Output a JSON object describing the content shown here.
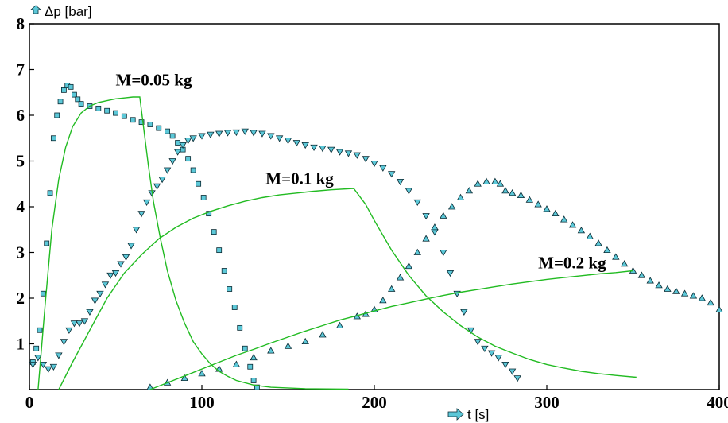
{
  "chart_data": {
    "type": "scatter",
    "title": "",
    "xlabel": "t [s]",
    "ylabel": "Δp [bar]",
    "xlim": [
      0,
      400
    ],
    "ylim": [
      0,
      8
    ],
    "x_ticks": [
      "0",
      "100",
      "200",
      "300",
      "400"
    ],
    "y_ticks": [
      "1",
      "2",
      "3",
      "4",
      "5",
      "6",
      "7",
      "8"
    ],
    "grid": false,
    "legend": "none",
    "annotations": [
      {
        "text": "M=0.05 kg",
        "x": 50,
        "y": 6.65
      },
      {
        "text": "M=0.1 kg",
        "x": 137,
        "y": 4.5
      },
      {
        "text": "M=0.2 kg",
        "x": 295,
        "y": 2.65
      }
    ],
    "colors": {
      "model_line": "#22bb22",
      "marker_fill": "#5cc8d8",
      "marker_edge": "#0a2a33"
    },
    "series": [
      {
        "marker": "square",
        "points": [
          [
            2,
            0.6
          ],
          [
            4,
            0.9
          ],
          [
            6,
            1.3
          ],
          [
            8,
            2.1
          ],
          [
            10,
            3.2
          ],
          [
            12,
            4.3
          ],
          [
            14,
            5.5
          ],
          [
            16,
            6.0
          ],
          [
            18,
            6.3
          ],
          [
            20,
            6.55
          ],
          [
            22,
            6.65
          ],
          [
            24,
            6.62
          ],
          [
            26,
            6.45
          ],
          [
            28,
            6.35
          ],
          [
            30,
            6.25
          ],
          [
            35,
            6.2
          ],
          [
            40,
            6.15
          ],
          [
            45,
            6.1
          ],
          [
            50,
            6.05
          ],
          [
            55,
            5.98
          ],
          [
            60,
            5.9
          ],
          [
            65,
            5.85
          ],
          [
            70,
            5.8
          ],
          [
            75,
            5.72
          ],
          [
            80,
            5.65
          ],
          [
            83,
            5.55
          ],
          [
            86,
            5.4
          ],
          [
            89,
            5.25
          ],
          [
            92,
            5.05
          ],
          [
            95,
            4.8
          ],
          [
            98,
            4.5
          ],
          [
            101,
            4.2
          ],
          [
            104,
            3.85
          ],
          [
            107,
            3.45
          ],
          [
            110,
            3.05
          ],
          [
            113,
            2.6
          ],
          [
            116,
            2.2
          ],
          [
            119,
            1.8
          ],
          [
            122,
            1.35
          ],
          [
            125,
            0.9
          ],
          [
            128,
            0.5
          ],
          [
            130,
            0.2
          ],
          [
            132,
            0.05
          ]
        ]
      },
      {
        "marker": "triangle-down",
        "points": [
          [
            2,
            0.55
          ],
          [
            5,
            0.7
          ],
          [
            8,
            0.55
          ],
          [
            11,
            0.45
          ],
          [
            14,
            0.5
          ],
          [
            17,
            0.75
          ],
          [
            20,
            1.05
          ],
          [
            23,
            1.3
          ],
          [
            26,
            1.45
          ],
          [
            29,
            1.45
          ],
          [
            32,
            1.5
          ],
          [
            35,
            1.7
          ],
          [
            38,
            1.95
          ],
          [
            41,
            2.1
          ],
          [
            44,
            2.3
          ],
          [
            47,
            2.5
          ],
          [
            50,
            2.55
          ],
          [
            53,
            2.75
          ],
          [
            56,
            2.9
          ],
          [
            59,
            3.15
          ],
          [
            62,
            3.5
          ],
          [
            65,
            3.85
          ],
          [
            68,
            4.1
          ],
          [
            71,
            4.3
          ],
          [
            74,
            4.45
          ],
          [
            77,
            4.6
          ],
          [
            80,
            4.8
          ],
          [
            83,
            5.0
          ],
          [
            86,
            5.2
          ],
          [
            89,
            5.35
          ],
          [
            92,
            5.45
          ],
          [
            95,
            5.5
          ],
          [
            100,
            5.55
          ],
          [
            105,
            5.58
          ],
          [
            110,
            5.6
          ],
          [
            115,
            5.62
          ],
          [
            120,
            5.63
          ],
          [
            125,
            5.65
          ],
          [
            130,
            5.62
          ],
          [
            135,
            5.6
          ],
          [
            140,
            5.55
          ],
          [
            145,
            5.5
          ],
          [
            150,
            5.45
          ],
          [
            155,
            5.4
          ],
          [
            160,
            5.35
          ],
          [
            165,
            5.3
          ],
          [
            170,
            5.28
          ],
          [
            175,
            5.25
          ],
          [
            180,
            5.2
          ],
          [
            185,
            5.17
          ],
          [
            190,
            5.13
          ],
          [
            195,
            5.05
          ],
          [
            200,
            4.95
          ],
          [
            205,
            4.85
          ],
          [
            210,
            4.72
          ],
          [
            215,
            4.55
          ],
          [
            220,
            4.35
          ],
          [
            225,
            4.1
          ],
          [
            230,
            3.8
          ],
          [
            235,
            3.45
          ],
          [
            240,
            3.0
          ],
          [
            244,
            2.55
          ],
          [
            248,
            2.1
          ],
          [
            252,
            1.7
          ],
          [
            256,
            1.3
          ],
          [
            260,
            1.05
          ],
          [
            264,
            0.9
          ],
          [
            268,
            0.8
          ],
          [
            272,
            0.7
          ],
          [
            276,
            0.55
          ],
          [
            280,
            0.4
          ],
          [
            283,
            0.25
          ]
        ]
      },
      {
        "marker": "triangle-up",
        "points": [
          [
            70,
            0.05
          ],
          [
            80,
            0.15
          ],
          [
            90,
            0.25
          ],
          [
            100,
            0.35
          ],
          [
            110,
            0.45
          ],
          [
            120,
            0.55
          ],
          [
            130,
            0.7
          ],
          [
            140,
            0.85
          ],
          [
            150,
            0.95
          ],
          [
            160,
            1.05
          ],
          [
            170,
            1.2
          ],
          [
            180,
            1.4
          ],
          [
            190,
            1.6
          ],
          [
            195,
            1.65
          ],
          [
            200,
            1.75
          ],
          [
            205,
            1.95
          ],
          [
            210,
            2.2
          ],
          [
            215,
            2.45
          ],
          [
            220,
            2.7
          ],
          [
            225,
            3.0
          ],
          [
            230,
            3.3
          ],
          [
            235,
            3.55
          ],
          [
            240,
            3.8
          ],
          [
            245,
            4.0
          ],
          [
            250,
            4.2
          ],
          [
            255,
            4.35
          ],
          [
            260,
            4.5
          ],
          [
            265,
            4.55
          ],
          [
            270,
            4.55
          ],
          [
            273,
            4.5
          ],
          [
            276,
            4.35
          ],
          [
            280,
            4.3
          ],
          [
            285,
            4.25
          ],
          [
            290,
            4.15
          ],
          [
            295,
            4.05
          ],
          [
            300,
            3.95
          ],
          [
            305,
            3.85
          ],
          [
            310,
            3.72
          ],
          [
            315,
            3.6
          ],
          [
            320,
            3.48
          ],
          [
            325,
            3.35
          ],
          [
            330,
            3.2
          ],
          [
            335,
            3.05
          ],
          [
            340,
            2.9
          ],
          [
            345,
            2.75
          ],
          [
            350,
            2.6
          ],
          [
            355,
            2.5
          ],
          [
            360,
            2.38
          ],
          [
            365,
            2.28
          ],
          [
            370,
            2.2
          ],
          [
            375,
            2.15
          ],
          [
            380,
            2.1
          ],
          [
            385,
            2.05
          ],
          [
            390,
            2.0
          ],
          [
            395,
            1.9
          ],
          [
            400,
            1.75
          ]
        ]
      },
      {
        "marker": "none",
        "style": "line",
        "points": [
          [
            5,
            0
          ],
          [
            9,
            1.8
          ],
          [
            13,
            3.5
          ],
          [
            17,
            4.6
          ],
          [
            21,
            5.3
          ],
          [
            25,
            5.75
          ],
          [
            30,
            6.05
          ],
          [
            35,
            6.2
          ],
          [
            40,
            6.28
          ],
          [
            45,
            6.32
          ],
          [
            50,
            6.36
          ],
          [
            55,
            6.38
          ],
          [
            60,
            6.4
          ],
          [
            64,
            6.4
          ],
          [
            66,
            5.8
          ],
          [
            69,
            4.9
          ],
          [
            72,
            4.1
          ],
          [
            76,
            3.3
          ],
          [
            80,
            2.6
          ],
          [
            85,
            1.95
          ],
          [
            90,
            1.45
          ],
          [
            95,
            1.05
          ],
          [
            100,
            0.78
          ],
          [
            105,
            0.56
          ],
          [
            110,
            0.4
          ],
          [
            115,
            0.29
          ],
          [
            120,
            0.2
          ],
          [
            130,
            0.1
          ],
          [
            140,
            0.05
          ],
          [
            160,
            0.02
          ],
          [
            185,
            0.01
          ]
        ]
      },
      {
        "marker": "none",
        "style": "line",
        "points": [
          [
            17,
            0
          ],
          [
            25,
            0.6
          ],
          [
            35,
            1.3
          ],
          [
            45,
            2.0
          ],
          [
            55,
            2.55
          ],
          [
            65,
            2.95
          ],
          [
            75,
            3.3
          ],
          [
            85,
            3.55
          ],
          [
            95,
            3.75
          ],
          [
            105,
            3.9
          ],
          [
            115,
            4.02
          ],
          [
            125,
            4.12
          ],
          [
            135,
            4.2
          ],
          [
            145,
            4.26
          ],
          [
            155,
            4.3
          ],
          [
            165,
            4.34
          ],
          [
            175,
            4.37
          ],
          [
            188,
            4.4
          ],
          [
            195,
            4.05
          ],
          [
            200,
            3.7
          ],
          [
            210,
            3.05
          ],
          [
            220,
            2.5
          ],
          [
            230,
            2.05
          ],
          [
            240,
            1.7
          ],
          [
            250,
            1.4
          ],
          [
            260,
            1.15
          ],
          [
            270,
            0.95
          ],
          [
            280,
            0.8
          ],
          [
            290,
            0.66
          ],
          [
            300,
            0.55
          ],
          [
            310,
            0.47
          ],
          [
            320,
            0.4
          ],
          [
            330,
            0.35
          ],
          [
            340,
            0.31
          ],
          [
            352,
            0.27
          ]
        ]
      },
      {
        "marker": "none",
        "style": "line",
        "points": [
          [
            70,
            0
          ],
          [
            80,
            0.15
          ],
          [
            90,
            0.3
          ],
          [
            100,
            0.45
          ],
          [
            110,
            0.6
          ],
          [
            120,
            0.75
          ],
          [
            130,
            0.88
          ],
          [
            140,
            1.02
          ],
          [
            150,
            1.15
          ],
          [
            160,
            1.28
          ],
          [
            170,
            1.4
          ],
          [
            180,
            1.52
          ],
          [
            190,
            1.62
          ],
          [
            200,
            1.72
          ],
          [
            210,
            1.82
          ],
          [
            220,
            1.9
          ],
          [
            230,
            1.98
          ],
          [
            240,
            2.06
          ],
          [
            250,
            2.13
          ],
          [
            260,
            2.19
          ],
          [
            270,
            2.25
          ],
          [
            280,
            2.31
          ],
          [
            290,
            2.36
          ],
          [
            300,
            2.41
          ],
          [
            310,
            2.45
          ],
          [
            320,
            2.49
          ],
          [
            330,
            2.53
          ],
          [
            340,
            2.56
          ],
          [
            350,
            2.6
          ]
        ]
      }
    ]
  }
}
